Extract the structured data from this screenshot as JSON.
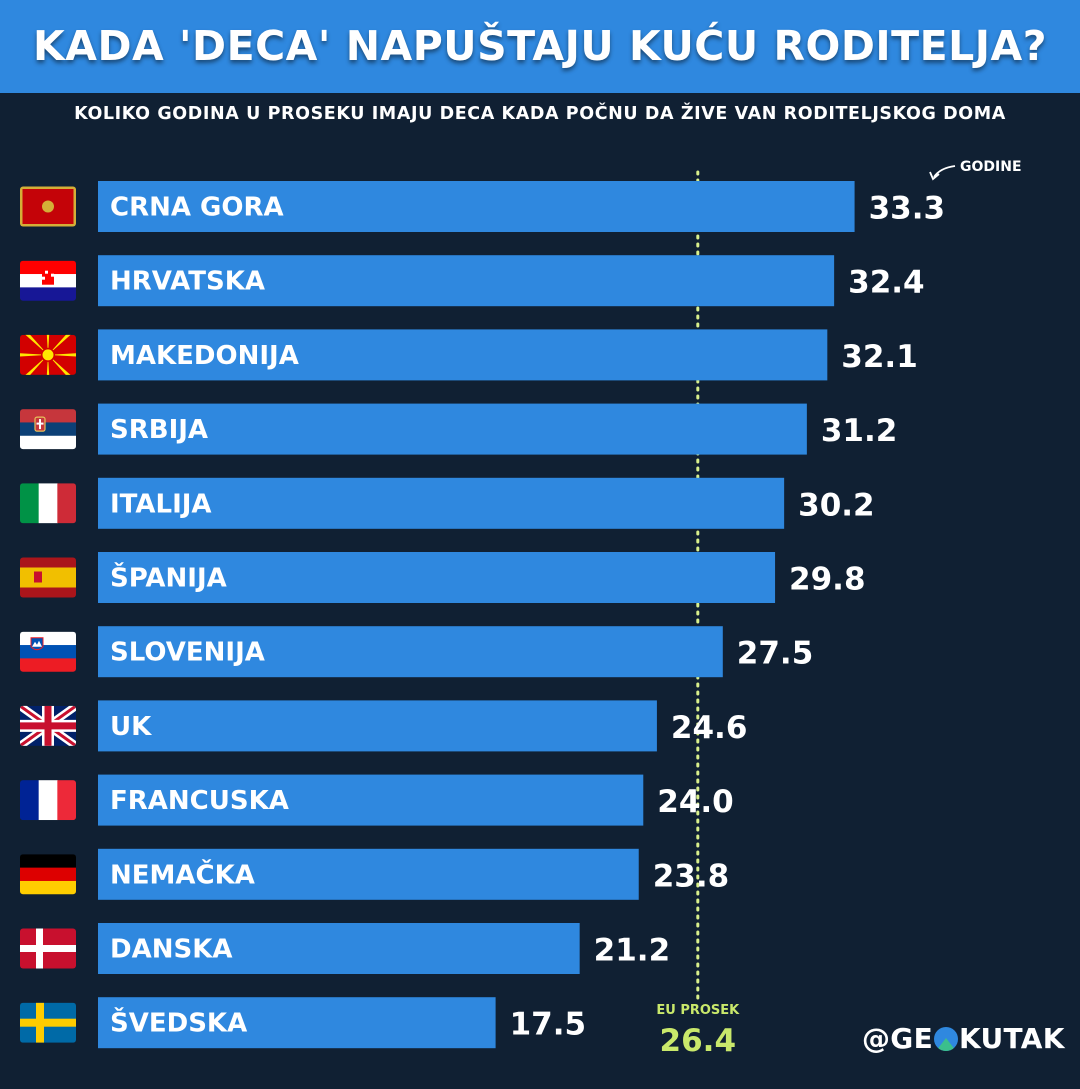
{
  "title": "KADA 'DECA' NAPUŠTAJU KUĆU RODITELJA?",
  "subtitle": "KOLIKO GODINA U PROSEKU IMAJU DECA KADA POČNU DA ŽIVE VAN RODITELJSKOG DOMA",
  "unit_label": "GODINE",
  "brand": {
    "prefix": "@GE",
    "suffix": "KUTAK",
    "icon": "globe-mountain-icon"
  },
  "colors": {
    "background": "#102033",
    "bar": "#2f88df",
    "reference_line": "#d9f08c",
    "text": "#ffffff"
  },
  "chart_data": {
    "type": "bar",
    "orientation": "horizontal",
    "categories": [
      "CRNA GORA",
      "HRVATSKA",
      "MAKEDONIJA",
      "SRBIJA",
      "ITALIJA",
      "ŠPANIJA",
      "SLOVENIJA",
      "UK",
      "FRANCUSKA",
      "NEMAČKA",
      "DANSKA",
      "ŠVEDSKA"
    ],
    "values": [
      33.3,
      32.4,
      32.1,
      31.2,
      30.2,
      29.8,
      27.5,
      24.6,
      24.0,
      23.8,
      21.2,
      17.5
    ],
    "value_labels": [
      "33.3",
      "32.4",
      "32.1",
      "31.2",
      "30.2",
      "29.8",
      "27.5",
      "24.6",
      "24.0",
      "23.8",
      "21.2",
      "17.5"
    ],
    "flags": [
      "flag-montenegro",
      "flag-croatia",
      "flag-north-macedonia",
      "flag-serbia",
      "flag-italy",
      "flag-spain",
      "flag-slovenia",
      "flag-uk",
      "flag-france",
      "flag-germany",
      "flag-denmark",
      "flag-sweden"
    ],
    "reference_line": {
      "label": "EU PROSEK",
      "value": 26.4,
      "value_label": "26.4"
    },
    "xlim": [
      0,
      36
    ],
    "grid": false,
    "axes_visible": false,
    "legend": "none"
  }
}
